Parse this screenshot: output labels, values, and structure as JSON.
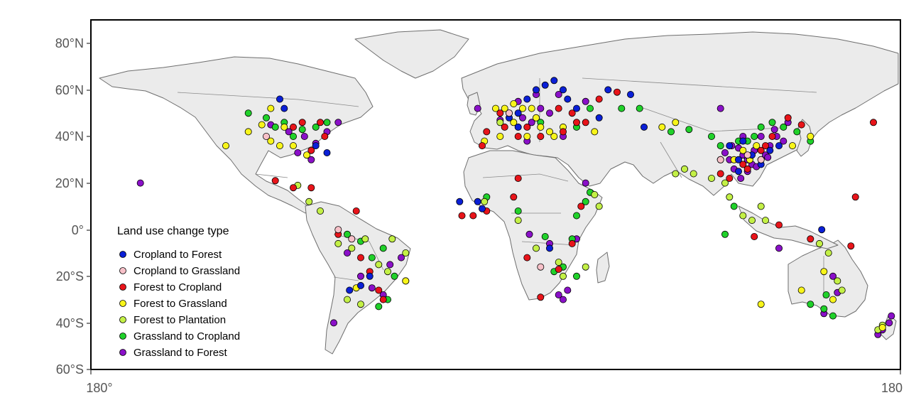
{
  "y_axis_labels": [
    "80°N",
    "60°N",
    "40°N",
    "20°N",
    "0°",
    "20°S",
    "40°S",
    "60°S"
  ],
  "x_axis_labels": [
    "180°",
    "180"
  ],
  "legend": {
    "title": "Land use change type",
    "items": [
      {
        "label": "Cropland to Forest",
        "color": "#0a1fd6"
      },
      {
        "label": "Cropland to Grassland",
        "color": "#f7c0c8"
      },
      {
        "label": "Forest to Cropland",
        "color": "#e8141a"
      },
      {
        "label": "Forest to Grassland",
        "color": "#f8f51a"
      },
      {
        "label": "Forest to Plantation",
        "color": "#c3f046"
      },
      {
        "label": "Grassland to Cropland",
        "color": "#20d12a"
      },
      {
        "label": "Grassland to Forest",
        "color": "#8a10c8"
      }
    ]
  },
  "colors": {
    "land": "#ebebeb",
    "border": "#6e6e6e",
    "frame": "#000000",
    "background": "#ffffff"
  },
  "chart_data": {
    "type": "scatter",
    "xlim": [
      -180,
      180
    ],
    "ylim": [
      -60,
      90
    ],
    "point_groups": [
      {
        "type": "Grassland to Forest",
        "points": [
          [
            -158,
            20
          ],
          [
            -100,
            45
          ],
          [
            -92,
            42
          ],
          [
            -85,
            40
          ],
          [
            -80,
            37
          ],
          [
            -75,
            42
          ],
          [
            -88,
            33
          ],
          [
            -82,
            30
          ],
          [
            -70,
            46
          ],
          [
            -66,
            -10
          ],
          [
            -60,
            -20
          ],
          [
            -55,
            -25
          ],
          [
            -50,
            -28
          ],
          [
            -47,
            -15
          ],
          [
            -42,
            -12
          ],
          [
            -72,
            -40
          ],
          [
            -8,
            52
          ],
          [
            2,
            47
          ],
          [
            6,
            50
          ],
          [
            12,
            48
          ],
          [
            16,
            46
          ],
          [
            20,
            52
          ],
          [
            10,
            55
          ],
          [
            18,
            58
          ],
          [
            28,
            58
          ],
          [
            24,
            50
          ],
          [
            30,
            40
          ],
          [
            14,
            38
          ],
          [
            40,
            55
          ],
          [
            36,
            -4
          ],
          [
            28,
            -28
          ],
          [
            30,
            -30
          ],
          [
            32,
            -26
          ],
          [
            100,
            52
          ],
          [
            105,
            36
          ],
          [
            108,
            35
          ],
          [
            110,
            32
          ],
          [
            112,
            30
          ],
          [
            114,
            28
          ],
          [
            116,
            27
          ],
          [
            118,
            30
          ],
          [
            120,
            32
          ],
          [
            115,
            34
          ],
          [
            112,
            25
          ],
          [
            109,
            22
          ],
          [
            104,
            30
          ],
          [
            102,
            33
          ],
          [
            100,
            30
          ],
          [
            106,
            26
          ],
          [
            122,
            36
          ],
          [
            125,
            40
          ],
          [
            128,
            38
          ],
          [
            121,
            31
          ],
          [
            118,
            40
          ],
          [
            110,
            40
          ],
          [
            150,
            -20
          ],
          [
            152,
            -27
          ],
          [
            146,
            -36
          ],
          [
            176,
            -37
          ],
          [
            172,
            -43
          ],
          [
            170,
            -45
          ],
          [
            175,
            -40
          ],
          [
            126,
            -8
          ],
          [
            40,
            20
          ],
          [
            124,
            43
          ],
          [
            130,
            46
          ],
          [
            24,
            -6
          ],
          [
            15,
            -2
          ]
        ]
      },
      {
        "type": "Grassland to Cropland",
        "points": [
          [
            -110,
            50
          ],
          [
            -102,
            48
          ],
          [
            -98,
            44
          ],
          [
            -94,
            46
          ],
          [
            -90,
            40
          ],
          [
            -86,
            43
          ],
          [
            -80,
            44
          ],
          [
            -75,
            46
          ],
          [
            -66,
            -2
          ],
          [
            -60,
            -5
          ],
          [
            -55,
            -12
          ],
          [
            -50,
            -8
          ],
          [
            -45,
            -20
          ],
          [
            -40,
            -22
          ],
          [
            -48,
            -30
          ],
          [
            -52,
            -33
          ],
          [
            -4,
            14
          ],
          [
            10,
            8
          ],
          [
            22,
            -3
          ],
          [
            34,
            -4
          ],
          [
            36,
            6
          ],
          [
            30,
            -16
          ],
          [
            26,
            -18
          ],
          [
            36,
            -20
          ],
          [
            40,
            12
          ],
          [
            42,
            16
          ],
          [
            20,
            46
          ],
          [
            36,
            44
          ],
          [
            42,
            52
          ],
          [
            56,
            52
          ],
          [
            64,
            52
          ],
          [
            78,
            42
          ],
          [
            86,
            43
          ],
          [
            96,
            40
          ],
          [
            100,
            36
          ],
          [
            108,
            38
          ],
          [
            112,
            38
          ],
          [
            115,
            40
          ],
          [
            118,
            44
          ],
          [
            123,
            46
          ],
          [
            128,
            44
          ],
          [
            134,
            42
          ],
          [
            140,
            38
          ],
          [
            146,
            -34
          ],
          [
            147,
            -28
          ],
          [
            150,
            -37
          ],
          [
            140,
            -32
          ],
          [
            102,
            -2
          ],
          [
            106,
            10
          ]
        ]
      },
      {
        "type": "Forest to Plantation",
        "points": [
          [
            -88,
            19
          ],
          [
            -83,
            12
          ],
          [
            -78,
            8
          ],
          [
            -70,
            -6
          ],
          [
            -64,
            -8
          ],
          [
            -58,
            -4
          ],
          [
            -52,
            -15
          ],
          [
            -48,
            -18
          ],
          [
            -46,
            -4
          ],
          [
            -40,
            -10
          ],
          [
            -60,
            -32
          ],
          [
            -5,
            12
          ],
          [
            10,
            4
          ],
          [
            18,
            -8
          ],
          [
            28,
            -14
          ],
          [
            30,
            -20
          ],
          [
            40,
            -16
          ],
          [
            44,
            15
          ],
          [
            46,
            10
          ],
          [
            80,
            24
          ],
          [
            84,
            26
          ],
          [
            88,
            24
          ],
          [
            96,
            22
          ],
          [
            102,
            20
          ],
          [
            104,
            14
          ],
          [
            110,
            6
          ],
          [
            114,
            4
          ],
          [
            118,
            10
          ],
          [
            120,
            4
          ],
          [
            144,
            -6
          ],
          [
            148,
            -10
          ],
          [
            152,
            -22
          ],
          [
            154,
            -26
          ],
          [
            170,
            -43
          ],
          [
            172,
            -41
          ],
          [
            -66,
            -30
          ],
          [
            2,
            46
          ]
        ]
      },
      {
        "type": "Forest to Grassland",
        "points": [
          [
            -120,
            36
          ],
          [
            -110,
            42
          ],
          [
            -104,
            45
          ],
          [
            -100,
            38
          ],
          [
            -96,
            36
          ],
          [
            -90,
            36
          ],
          [
            -84,
            32
          ],
          [
            -94,
            44
          ],
          [
            -100,
            52
          ],
          [
            0,
            52
          ],
          [
            4,
            52
          ],
          [
            8,
            54
          ],
          [
            12,
            52
          ],
          [
            16,
            52
          ],
          [
            18,
            48
          ],
          [
            20,
            44
          ],
          [
            8,
            46
          ],
          [
            2,
            40
          ],
          [
            26,
            40
          ],
          [
            30,
            44
          ],
          [
            44,
            42
          ],
          [
            74,
            44
          ],
          [
            80,
            46
          ],
          [
            106,
            30
          ],
          [
            110,
            34
          ],
          [
            113,
            30
          ],
          [
            116,
            36
          ],
          [
            132,
            36
          ],
          [
            140,
            40
          ],
          [
            136,
            -26
          ],
          [
            146,
            -18
          ],
          [
            150,
            -30
          ],
          [
            172,
            -42
          ],
          [
            118,
            -32
          ],
          [
            -62,
            -25
          ],
          [
            -40,
            -22
          ],
          [
            14,
            40
          ],
          [
            24,
            42
          ],
          [
            -5,
            38
          ]
        ]
      },
      {
        "type": "Forest to Cropland",
        "points": [
          [
            -98,
            21
          ],
          [
            -90,
            18
          ],
          [
            -82,
            18
          ],
          [
            -76,
            40
          ],
          [
            -82,
            34
          ],
          [
            -90,
            44
          ],
          [
            -86,
            46
          ],
          [
            -78,
            46
          ],
          [
            -60,
            -12
          ],
          [
            -56,
            -18
          ],
          [
            -52,
            -26
          ],
          [
            -50,
            -30
          ],
          [
            -70,
            -2
          ],
          [
            10,
            40
          ],
          [
            14,
            44
          ],
          [
            20,
            40
          ],
          [
            30,
            42
          ],
          [
            28,
            52
          ],
          [
            34,
            50
          ],
          [
            40,
            46
          ],
          [
            46,
            56
          ],
          [
            54,
            59
          ],
          [
            36,
            46
          ],
          [
            4,
            44
          ],
          [
            -4,
            42
          ],
          [
            -6,
            36
          ],
          [
            2,
            50
          ],
          [
            -10,
            6
          ],
          [
            8,
            14
          ],
          [
            10,
            22
          ],
          [
            38,
            10
          ],
          [
            34,
            -6
          ],
          [
            28,
            -17
          ],
          [
            20,
            -29
          ],
          [
            14,
            -12
          ],
          [
            100,
            24
          ],
          [
            104,
            22
          ],
          [
            110,
            28
          ],
          [
            112,
            26
          ],
          [
            118,
            34
          ],
          [
            120,
            36
          ],
          [
            136,
            45
          ],
          [
            130,
            48
          ],
          [
            123,
            40
          ],
          [
            160,
            14
          ],
          [
            140,
            -4
          ],
          [
            158,
            -7
          ],
          [
            115,
            -3
          ],
          [
            126,
            2
          ],
          [
            168,
            46
          ],
          [
            -62,
            8
          ],
          [
            -15,
            6
          ],
          [
            -4,
            8
          ]
        ]
      },
      {
        "type": "Cropland to Forest",
        "points": [
          [
            -96,
            56
          ],
          [
            -94,
            52
          ],
          [
            -80,
            36
          ],
          [
            -75,
            33
          ],
          [
            -65,
            -26
          ],
          [
            -60,
            -24
          ],
          [
            -56,
            -20
          ],
          [
            -8,
            12
          ],
          [
            -6,
            9
          ],
          [
            6,
            48
          ],
          [
            10,
            50
          ],
          [
            14,
            56
          ],
          [
            18,
            60
          ],
          [
            22,
            62
          ],
          [
            26,
            64
          ],
          [
            30,
            60
          ],
          [
            32,
            56
          ],
          [
            36,
            52
          ],
          [
            46,
            48
          ],
          [
            50,
            60
          ],
          [
            60,
            58
          ],
          [
            66,
            44
          ],
          [
            104,
            36
          ],
          [
            108,
            30
          ],
          [
            114,
            32
          ],
          [
            118,
            28
          ],
          [
            122,
            34
          ],
          [
            126,
            36
          ],
          [
            108,
            25
          ],
          [
            110,
            38
          ],
          [
            145,
            0
          ],
          [
            24,
            -8
          ],
          [
            10,
            44
          ],
          [
            -16,
            12
          ]
        ]
      },
      {
        "type": "Cropland to Grassland",
        "points": [
          [
            -70,
            0
          ],
          [
            -64,
            -4
          ],
          [
            112,
            32
          ],
          [
            118,
            30
          ],
          [
            6,
            50
          ],
          [
            -102,
            40
          ],
          [
            100,
            30
          ],
          [
            20,
            -16
          ]
        ]
      }
    ]
  }
}
